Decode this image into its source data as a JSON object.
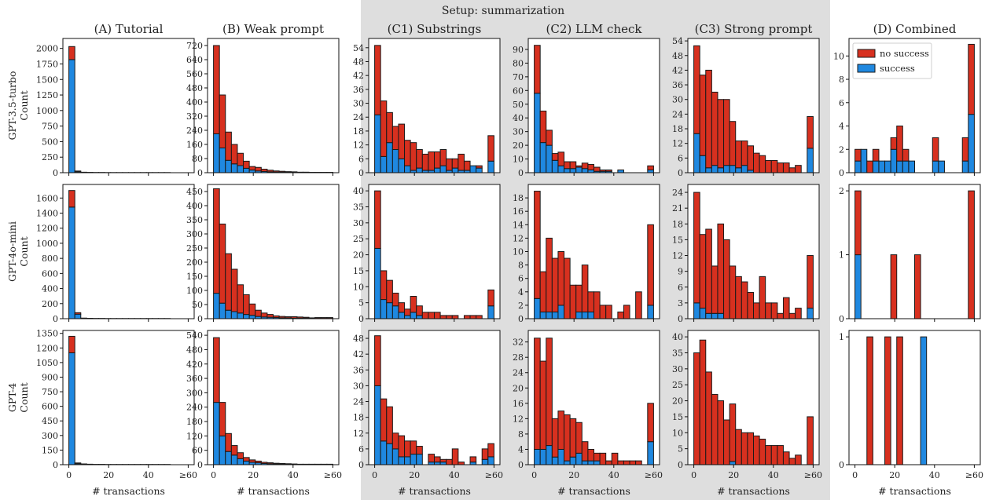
{
  "title": "Setup: summarization",
  "xlabel": "# transactions",
  "ylabel": "Count",
  "legend": {
    "placement": "upper-left",
    "entries": [
      {
        "label": "no success",
        "color": "#d7301f"
      },
      {
        "label": "success",
        "color": "#1f88e0"
      }
    ]
  },
  "columns": [
    {
      "label": "(A) Tutorial",
      "highlight": false
    },
    {
      "label": "(B) Weak prompt",
      "highlight": false
    },
    {
      "label": "(C1) Substrings",
      "highlight": true
    },
    {
      "label": "(C2) LLM check",
      "highlight": true
    },
    {
      "label": "(C3) Strong prompt",
      "highlight": true
    },
    {
      "label": "(D) Combined",
      "highlight": false
    }
  ],
  "rows": [
    {
      "label": "GPT-3.5-turbo"
    },
    {
      "label": "GPT-4o-mini"
    },
    {
      "label": "GPT-4"
    }
  ],
  "x_ticks": [
    {
      "value": 0,
      "label": "0"
    },
    {
      "value": 20,
      "label": "20"
    },
    {
      "value": 40,
      "label": "40"
    },
    {
      "value": 60,
      "label": "≥60"
    }
  ],
  "chart_data": {
    "type": "bar",
    "stacked": true,
    "xlim": [
      -3,
      63
    ],
    "bin_width": 3,
    "bin_starts": [
      0,
      3,
      6,
      9,
      12,
      15,
      18,
      21,
      24,
      27,
      30,
      33,
      36,
      39,
      42,
      45,
      48,
      51,
      54,
      57
    ],
    "series_names": [
      "success",
      "no success"
    ],
    "panels": [
      {
        "row": 0,
        "col": 0,
        "ylim": [
          0,
          2160
        ],
        "yticks": [
          0,
          250,
          500,
          750,
          1000,
          1250,
          1500,
          1750,
          2000
        ],
        "success": [
          1820,
          15,
          5,
          3,
          2,
          2,
          1,
          1,
          1,
          1,
          1,
          1,
          1,
          1,
          1,
          1,
          1,
          0,
          0,
          0
        ],
        "no_success": [
          210,
          12,
          3,
          2,
          1,
          1,
          1,
          1,
          1,
          1,
          1,
          1,
          1,
          1,
          1,
          1,
          1,
          0,
          0,
          0
        ]
      },
      {
        "row": 0,
        "col": 1,
        "ylim": [
          0,
          760
        ],
        "yticks": [
          0,
          80,
          160,
          240,
          320,
          400,
          480,
          560,
          640,
          720
        ],
        "success": [
          220,
          140,
          70,
          50,
          40,
          25,
          15,
          10,
          7,
          5,
          4,
          3,
          2,
          2,
          1,
          1,
          1,
          1,
          1,
          1
        ],
        "no_success": [
          500,
          300,
          160,
          110,
          70,
          40,
          20,
          20,
          13,
          9,
          6,
          5,
          4,
          3,
          2,
          2,
          1,
          1,
          1,
          1
        ]
      },
      {
        "row": 0,
        "col": 2,
        "ylim": [
          0,
          58
        ],
        "yticks": [
          0,
          6,
          12,
          18,
          24,
          30,
          36,
          42,
          48,
          54
        ],
        "success": [
          25,
          7,
          13,
          10,
          6,
          3,
          1,
          2,
          1,
          1,
          2,
          3,
          1,
          2,
          1,
          1,
          3,
          2,
          0,
          5
        ],
        "no_success": [
          30,
          24,
          13,
          10,
          15,
          11,
          12,
          8,
          7,
          8,
          7,
          7,
          5,
          4,
          7,
          4,
          0,
          1,
          0,
          11
        ]
      },
      {
        "row": 0,
        "col": 3,
        "ylim": [
          0,
          98
        ],
        "yticks": [
          0,
          10,
          20,
          30,
          40,
          50,
          60,
          70,
          80,
          90
        ],
        "success": [
          58,
          22,
          20,
          9,
          5,
          3,
          3,
          4,
          3,
          2,
          1,
          1,
          1,
          0,
          2,
          0,
          0,
          0,
          0,
          2
        ],
        "no_success": [
          35,
          23,
          11,
          5,
          10,
          5,
          5,
          1,
          4,
          4,
          3,
          1,
          1,
          0,
          0,
          0,
          0,
          0,
          0,
          3
        ]
      },
      {
        "row": 0,
        "col": 4,
        "ylim": [
          0,
          55
        ],
        "yticks": [
          0,
          6,
          12,
          18,
          24,
          30,
          36,
          42,
          48,
          54
        ],
        "success": [
          16,
          7,
          2,
          3,
          2,
          3,
          3,
          2,
          3,
          1,
          0,
          0,
          0,
          0,
          0,
          0,
          0,
          0,
          0,
          10
        ],
        "no_success": [
          36,
          33,
          40,
          30,
          28,
          27,
          18,
          11,
          10,
          10,
          8,
          7,
          5,
          5,
          4,
          4,
          2,
          3,
          0,
          13
        ]
      },
      {
        "row": 0,
        "col": 5,
        "ylim": [
          0,
          11.5
        ],
        "yticks": [
          0,
          2,
          4,
          6,
          8,
          10
        ],
        "success": [
          1,
          2,
          0,
          1,
          1,
          1,
          2,
          1,
          1,
          1,
          0,
          0,
          0,
          1,
          1,
          0,
          0,
          0,
          1,
          5
        ],
        "no_success": [
          1,
          0,
          1,
          1,
          0,
          0,
          1,
          3,
          1,
          0,
          0,
          0,
          0,
          2,
          0,
          0,
          0,
          0,
          2,
          6
        ]
      },
      {
        "row": 1,
        "col": 0,
        "ylim": [
          0,
          1780
        ],
        "yticks": [
          0,
          200,
          400,
          600,
          800,
          1000,
          1200,
          1400,
          1600
        ],
        "success": [
          1480,
          60,
          5,
          3,
          2,
          2,
          1,
          1,
          1,
          1,
          1,
          1,
          1,
          1,
          1,
          1,
          1,
          0,
          0,
          0
        ],
        "no_success": [
          220,
          20,
          3,
          2,
          1,
          1,
          1,
          1,
          1,
          1,
          1,
          1,
          1,
          1,
          1,
          1,
          1,
          0,
          0,
          0
        ]
      },
      {
        "row": 1,
        "col": 1,
        "ylim": [
          0,
          475
        ],
        "yticks": [
          0,
          50,
          100,
          150,
          200,
          250,
          300,
          350,
          400,
          450
        ],
        "success": [
          90,
          55,
          30,
          25,
          20,
          15,
          12,
          8,
          6,
          5,
          4,
          3,
          3,
          2,
          2,
          2,
          1,
          1,
          1,
          1
        ],
        "no_success": [
          370,
          280,
          200,
          150,
          100,
          70,
          40,
          22,
          14,
          10,
          6,
          5,
          4,
          5,
          4,
          3,
          2,
          3,
          3,
          3
        ]
      },
      {
        "row": 1,
        "col": 2,
        "ylim": [
          0,
          42
        ],
        "yticks": [
          0,
          5,
          10,
          15,
          20,
          25,
          30,
          35,
          40
        ],
        "success": [
          22,
          6,
          5,
          4,
          2,
          1,
          2,
          1,
          0,
          0,
          0,
          0,
          0,
          0,
          0,
          0,
          0,
          0,
          0,
          4
        ],
        "no_success": [
          18,
          9,
          7,
          4,
          3,
          2,
          5,
          3,
          2,
          2,
          2,
          1,
          1,
          1,
          0,
          1,
          1,
          1,
          0,
          5
        ]
      },
      {
        "row": 1,
        "col": 3,
        "ylim": [
          0,
          20
        ],
        "yticks": [
          0,
          2,
          4,
          6,
          8,
          10,
          12,
          14,
          16,
          18
        ],
        "success": [
          3,
          1,
          1,
          1,
          2,
          0,
          0,
          1,
          1,
          1,
          0,
          0,
          0,
          0,
          0,
          0,
          0,
          0,
          0,
          2
        ],
        "no_success": [
          16,
          6,
          11,
          8,
          8,
          9,
          5,
          4,
          7,
          3,
          4,
          2,
          2,
          0,
          1,
          2,
          0,
          4,
          0,
          12
        ]
      },
      {
        "row": 1,
        "col": 4,
        "ylim": [
          0,
          25.5
        ],
        "yticks": [
          0,
          3,
          6,
          9,
          12,
          15,
          18,
          21,
          24
        ],
        "success": [
          3,
          2,
          1,
          1,
          1,
          0,
          0,
          0,
          0,
          0,
          0,
          0,
          0,
          0,
          0,
          0,
          0,
          0,
          0,
          2
        ],
        "no_success": [
          21,
          14,
          16,
          9,
          17,
          15,
          10,
          8,
          7,
          5,
          3,
          8,
          3,
          3,
          1,
          4,
          1,
          2,
          0,
          10
        ]
      },
      {
        "row": 1,
        "col": 5,
        "ylim": [
          0,
          2.1
        ],
        "yticks": [
          0,
          1,
          2
        ],
        "success": [
          1,
          0,
          0,
          0,
          0,
          0,
          0,
          0,
          0,
          0,
          0,
          0,
          0,
          0,
          0,
          0,
          0,
          0,
          0,
          0
        ],
        "no_success": [
          1,
          0,
          0,
          0,
          0,
          0,
          1,
          0,
          0,
          0,
          1,
          0,
          0,
          0,
          0,
          0,
          0,
          0,
          0,
          2
        ]
      },
      {
        "row": 2,
        "col": 0,
        "ylim": [
          0,
          1380
        ],
        "yticks": [
          0,
          150,
          300,
          450,
          600,
          750,
          900,
          1050,
          1200,
          1350
        ],
        "success": [
          1150,
          10,
          5,
          3,
          2,
          2,
          1,
          1,
          1,
          1,
          1,
          1,
          1,
          1,
          1,
          1,
          1,
          0,
          0,
          0
        ],
        "no_success": [
          170,
          8,
          3,
          2,
          1,
          1,
          1,
          1,
          1,
          1,
          1,
          1,
          1,
          1,
          1,
          1,
          1,
          0,
          0,
          0
        ]
      },
      {
        "row": 2,
        "col": 1,
        "ylim": [
          0,
          560
        ],
        "yticks": [
          0,
          60,
          120,
          180,
          240,
          300,
          360,
          420,
          480,
          540
        ],
        "success": [
          260,
          120,
          55,
          40,
          25,
          15,
          10,
          8,
          5,
          4,
          3,
          2,
          2,
          1,
          1,
          1,
          1,
          1,
          1,
          1
        ],
        "no_success": [
          270,
          140,
          75,
          40,
          25,
          15,
          10,
          7,
          5,
          4,
          3,
          3,
          2,
          2,
          1,
          1,
          1,
          1,
          1,
          1
        ]
      },
      {
        "row": 2,
        "col": 2,
        "ylim": [
          0,
          51
        ],
        "yticks": [
          0,
          6,
          12,
          18,
          24,
          30,
          36,
          42,
          48
        ],
        "success": [
          30,
          9,
          8,
          6,
          3,
          3,
          4,
          4,
          0,
          1,
          1,
          1,
          0,
          0,
          0,
          0,
          1,
          0,
          2,
          3
        ],
        "no_success": [
          19,
          16,
          14,
          6,
          8,
          6,
          5,
          3,
          0,
          3,
          2,
          1,
          2,
          6,
          1,
          0,
          2,
          0,
          4,
          5
        ]
      },
      {
        "row": 2,
        "col": 3,
        "ylim": [
          0,
          35
        ],
        "yticks": [
          0,
          4,
          8,
          12,
          16,
          20,
          24,
          28,
          32
        ],
        "success": [
          4,
          4,
          5,
          2,
          4,
          1,
          2,
          3,
          1,
          1,
          1,
          0,
          0,
          0,
          0,
          0,
          0,
          0,
          0,
          6
        ],
        "no_success": [
          29,
          23,
          28,
          10,
          10,
          12,
          10,
          8,
          5,
          3,
          2,
          3,
          1,
          3,
          1,
          1,
          1,
          1,
          0,
          10
        ]
      },
      {
        "row": 2,
        "col": 4,
        "ylim": [
          0,
          42
        ],
        "yticks": [
          0,
          5,
          10,
          15,
          20,
          25,
          30,
          35,
          40
        ],
        "success": [
          0,
          0,
          0,
          0,
          0,
          0,
          1,
          0,
          0,
          0,
          0,
          0,
          0,
          0,
          0,
          0,
          0,
          0,
          0,
          0
        ],
        "no_success": [
          35,
          39,
          29,
          22,
          20,
          14,
          18,
          11,
          10,
          10,
          9,
          8,
          6,
          6,
          6,
          4,
          2,
          3,
          0,
          15
        ]
      },
      {
        "row": 2,
        "col": 5,
        "ylim": [
          0,
          1.05
        ],
        "yticks": [
          0,
          1
        ],
        "success": [
          0,
          0,
          0,
          0,
          0,
          0,
          0,
          0,
          0,
          0,
          0,
          1,
          0,
          0,
          0,
          0,
          0,
          0,
          0,
          0
        ],
        "no_success": [
          0,
          0,
          1,
          0,
          0,
          1,
          0,
          1,
          0,
          0,
          0,
          0,
          0,
          0,
          0,
          0,
          0,
          0,
          0,
          0
        ]
      }
    ]
  }
}
